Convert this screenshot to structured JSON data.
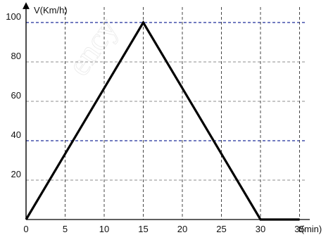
{
  "chart_data": {
    "type": "line",
    "title": "",
    "xlabel": "t(min)",
    "ylabel": "V(Km/h)",
    "xlim": [
      0,
      38
    ],
    "ylim": [
      0,
      108
    ],
    "x_ticks": [
      {
        "value": 0,
        "label": "0"
      },
      {
        "value": 5,
        "label": "5"
      },
      {
        "value": 10,
        "label": "10"
      },
      {
        "value": 15,
        "label": "15"
      },
      {
        "value": 20,
        "label": "20"
      },
      {
        "value": 25,
        "label": "25"
      },
      {
        "value": 30,
        "label": "30"
      },
      {
        "value": 35,
        "label": "35"
      }
    ],
    "y_ticks": [
      {
        "value": 20,
        "label": "20"
      },
      {
        "value": 40,
        "label": "40"
      },
      {
        "value": 60,
        "label": "60"
      },
      {
        "value": 80,
        "label": "80"
      },
      {
        "value": 100,
        "label": "100"
      }
    ],
    "grid": true,
    "series": [
      {
        "x": [
          0,
          15,
          30,
          35
        ],
        "y": [
          0,
          100,
          0,
          0
        ]
      }
    ],
    "colors": {
      "line": "#000000",
      "grid_gray": "#8c8c8c",
      "grid_blue": "#1f2f9a",
      "axis": "#000000"
    }
  },
  "watermark": {
    "text": "ency"
  }
}
